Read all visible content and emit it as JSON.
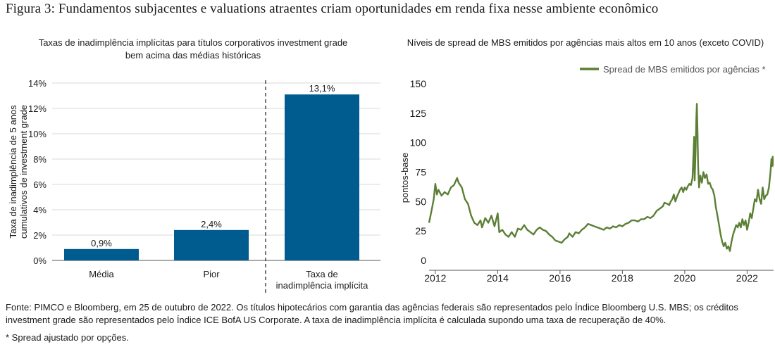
{
  "figure_title": "Figura 3: Fundamentos subjacentes e valuations atraentes criam oportunidades em renda fixa nesse ambiente econômico",
  "left_chart_title_line1": "Taxas de inadimplência implícitas para títulos corporativos investment grade",
  "left_chart_title_line2": "bem acima das médias históricas",
  "right_chart_title": "Níveis de spread de MBS emitidos por agências mais altos em 10 anos (exceto COVID)",
  "footer": {
    "source_line1": "Fonte: PIMCO e Bloomberg, em 25 de outubro de 2022. Os títulos hipotecários com garantia das agências federais são representados pelo Índice Bloomberg U.S. MBS; os créditos",
    "source_line2": "investment grade são representados pelo Índice ICE BofA US Corporate. A taxa de inadimplência implícita é calculada supondo uma taxa de recuperação de 40%.",
    "note": "* Spread ajustado por opções."
  },
  "colors": {
    "bar": "#005b8f",
    "line": "#5b7f35"
  },
  "chart_data": [
    {
      "type": "bar",
      "categories": [
        [
          "Média"
        ],
        [
          "Pior"
        ],
        [
          "Taxa de",
          "inadimplência implícita"
        ]
      ],
      "values": [
        0.9,
        2.4,
        13.1
      ],
      "data_labels": [
        "0,9%",
        "2,4%",
        "13,1%"
      ],
      "ylabel_lines": [
        "Taxa de inadimplência de 5 anos",
        "cumulativos de investment grade"
      ],
      "ylim": [
        0,
        14
      ],
      "yticks": [
        0,
        2,
        4,
        6,
        8,
        10,
        12,
        14
      ],
      "ytick_labels": [
        "0%",
        "2%",
        "4%",
        "6%",
        "8%",
        "10%",
        "12%",
        "14%"
      ],
      "grid": true,
      "divider": "dashed vertical line between second and third bars"
    },
    {
      "type": "line",
      "series": [
        {
          "name": "Spread de MBS emitidos por agências *",
          "points": [
            [
              2011.8,
              32
            ],
            [
              2011.9,
              45
            ],
            [
              2011.95,
              52
            ],
            [
              2012.0,
              65
            ],
            [
              2012.05,
              56
            ],
            [
              2012.1,
              60
            ],
            [
              2012.2,
              55
            ],
            [
              2012.3,
              58
            ],
            [
              2012.4,
              56
            ],
            [
              2012.5,
              62
            ],
            [
              2012.6,
              64
            ],
            [
              2012.7,
              70
            ],
            [
              2012.75,
              66
            ],
            [
              2012.85,
              62
            ],
            [
              2012.95,
              52
            ],
            [
              2013.05,
              48
            ],
            [
              2013.15,
              38
            ],
            [
              2013.25,
              32
            ],
            [
              2013.35,
              30
            ],
            [
              2013.45,
              34
            ],
            [
              2013.5,
              28
            ],
            [
              2013.6,
              36
            ],
            [
              2013.7,
              32
            ],
            [
              2013.8,
              38
            ],
            [
              2013.9,
              29
            ],
            [
              2014.0,
              40
            ],
            [
              2014.05,
              24
            ],
            [
              2014.15,
              26
            ],
            [
              2014.25,
              22
            ],
            [
              2014.35,
              20
            ],
            [
              2014.45,
              24
            ],
            [
              2014.55,
              20
            ],
            [
              2014.65,
              27
            ],
            [
              2014.75,
              26
            ],
            [
              2014.85,
              30
            ],
            [
              2014.95,
              26
            ],
            [
              2015.05,
              24
            ],
            [
              2015.15,
              22
            ],
            [
              2015.25,
              26
            ],
            [
              2015.35,
              28
            ],
            [
              2015.45,
              26
            ],
            [
              2015.55,
              25
            ],
            [
              2015.65,
              22
            ],
            [
              2015.75,
              20
            ],
            [
              2015.85,
              17
            ],
            [
              2015.95,
              16
            ],
            [
              2016.05,
              15
            ],
            [
              2016.15,
              18
            ],
            [
              2016.25,
              20
            ],
            [
              2016.3,
              23
            ],
            [
              2016.4,
              20
            ],
            [
              2016.5,
              24
            ],
            [
              2016.6,
              23
            ],
            [
              2016.7,
              26
            ],
            [
              2016.8,
              28
            ],
            [
              2016.9,
              31
            ],
            [
              2017.0,
              30
            ],
            [
              2017.1,
              29
            ],
            [
              2017.2,
              28
            ],
            [
              2017.3,
              27
            ],
            [
              2017.4,
              26
            ],
            [
              2017.5,
              28
            ],
            [
              2017.6,
              27
            ],
            [
              2017.7,
              29
            ],
            [
              2017.8,
              28
            ],
            [
              2017.9,
              30
            ],
            [
              2018.0,
              29
            ],
            [
              2018.1,
              31
            ],
            [
              2018.2,
              32
            ],
            [
              2018.3,
              34
            ],
            [
              2018.4,
              34
            ],
            [
              2018.5,
              33
            ],
            [
              2018.6,
              35
            ],
            [
              2018.7,
              35
            ],
            [
              2018.8,
              37
            ],
            [
              2018.9,
              36
            ],
            [
              2019.0,
              38
            ],
            [
              2019.1,
              42
            ],
            [
              2019.2,
              44
            ],
            [
              2019.3,
              46
            ],
            [
              2019.35,
              49
            ],
            [
              2019.45,
              48
            ],
            [
              2019.5,
              47
            ],
            [
              2019.55,
              50
            ],
            [
              2019.6,
              52
            ],
            [
              2019.65,
              56
            ],
            [
              2019.7,
              50
            ],
            [
              2019.75,
              54
            ],
            [
              2019.85,
              60
            ],
            [
              2019.9,
              62
            ],
            [
              2019.95,
              58
            ],
            [
              2020.0,
              62
            ],
            [
              2020.05,
              60
            ],
            [
              2020.1,
              63
            ],
            [
              2020.15,
              65
            ],
            [
              2020.2,
              64
            ],
            [
              2020.25,
              70
            ],
            [
              2020.28,
              90
            ],
            [
              2020.3,
              105
            ],
            [
              2020.32,
              68
            ],
            [
              2020.35,
              95
            ],
            [
              2020.37,
              120
            ],
            [
              2020.39,
              133
            ],
            [
              2020.41,
              110
            ],
            [
              2020.43,
              80
            ],
            [
              2020.46,
              62
            ],
            [
              2020.5,
              72
            ],
            [
              2020.55,
              66
            ],
            [
              2020.6,
              75
            ],
            [
              2020.65,
              70
            ],
            [
              2020.7,
              73
            ],
            [
              2020.75,
              65
            ],
            [
              2020.8,
              66
            ],
            [
              2020.85,
              62
            ],
            [
              2020.9,
              60
            ],
            [
              2020.95,
              55
            ],
            [
              2021.0,
              45
            ],
            [
              2021.05,
              38
            ],
            [
              2021.1,
              30
            ],
            [
              2021.15,
              22
            ],
            [
              2021.2,
              16
            ],
            [
              2021.25,
              12
            ],
            [
              2021.3,
              15
            ],
            [
              2021.35,
              10
            ],
            [
              2021.4,
              12
            ],
            [
              2021.45,
              8
            ],
            [
              2021.5,
              16
            ],
            [
              2021.55,
              22
            ],
            [
              2021.6,
              26
            ],
            [
              2021.65,
              30
            ],
            [
              2021.7,
              28
            ],
            [
              2021.75,
              32
            ],
            [
              2021.8,
              28
            ],
            [
              2021.85,
              35
            ],
            [
              2021.9,
              30
            ],
            [
              2021.95,
              34
            ],
            [
              2022.0,
              26
            ],
            [
              2022.05,
              32
            ],
            [
              2022.1,
              40
            ],
            [
              2022.15,
              36
            ],
            [
              2022.2,
              44
            ],
            [
              2022.25,
              52
            ],
            [
              2022.3,
              50
            ],
            [
              2022.35,
              60
            ],
            [
              2022.4,
              52
            ],
            [
              2022.45,
              48
            ],
            [
              2022.5,
              62
            ],
            [
              2022.55,
              52
            ],
            [
              2022.6,
              55
            ],
            [
              2022.65,
              56
            ],
            [
              2022.7,
              62
            ],
            [
              2022.75,
              75
            ],
            [
              2022.78,
              86
            ],
            [
              2022.8,
              80
            ],
            [
              2022.82,
              88
            ],
            [
              2022.85,
              82
            ],
            [
              2022.88,
              78
            ]
          ]
        }
      ],
      "ylabel": "pontos-base",
      "ylim": [
        0,
        150
      ],
      "yticks": [
        0,
        25,
        50,
        75,
        100,
        125,
        150
      ],
      "xlim": [
        2011.8,
        2022.85
      ],
      "xticks": [
        2012,
        2014,
        2016,
        2018,
        2020,
        2022
      ],
      "legend": "top-right",
      "grid": false
    }
  ]
}
